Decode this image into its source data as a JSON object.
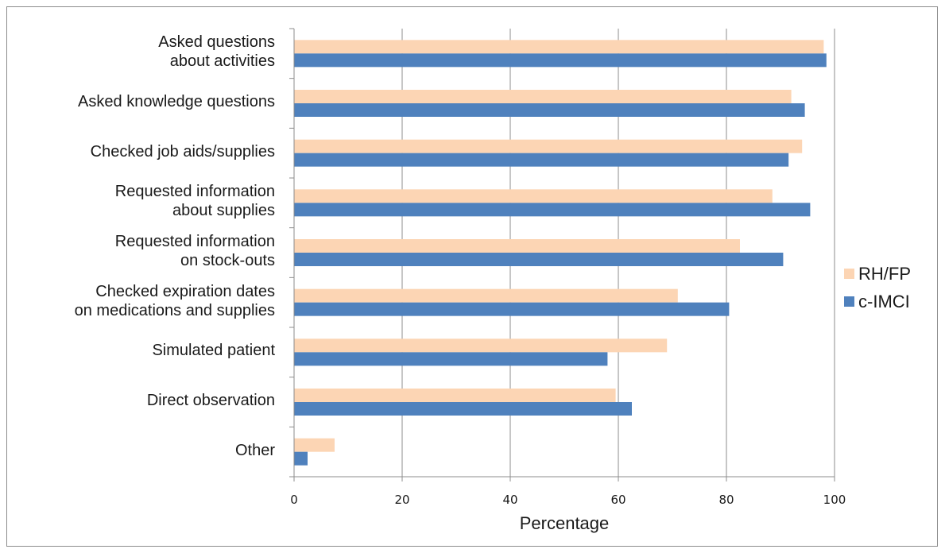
{
  "chart_data": {
    "type": "bar",
    "orientation": "horizontal",
    "title": "",
    "xlabel": "Percentage",
    "ylabel": "",
    "xlim": [
      0,
      100
    ],
    "x_ticks": [
      "0",
      "20",
      "40",
      "60",
      "80",
      "100"
    ],
    "grid": true,
    "legend_position": "right",
    "categories": [
      "Asked questions\nabout activities",
      "Asked knowledge questions",
      "Checked job aids/supplies",
      "Requested information\nabout supplies",
      "Requested information\non stock-outs",
      "Checked expiration dates\non medications and supplies",
      "Simulated patient",
      "Direct observation",
      "Other"
    ],
    "series": [
      {
        "name": "RH/FP",
        "color": "#fcd5b4",
        "values": [
          98,
          92,
          94,
          88.5,
          82.5,
          71,
          69,
          59.5,
          7.5
        ]
      },
      {
        "name": "c-IMCI",
        "color": "#4f81bd",
        "values": [
          98.5,
          94.5,
          91.5,
          95.5,
          90.5,
          80.5,
          58,
          62.5,
          2.5
        ]
      }
    ]
  }
}
